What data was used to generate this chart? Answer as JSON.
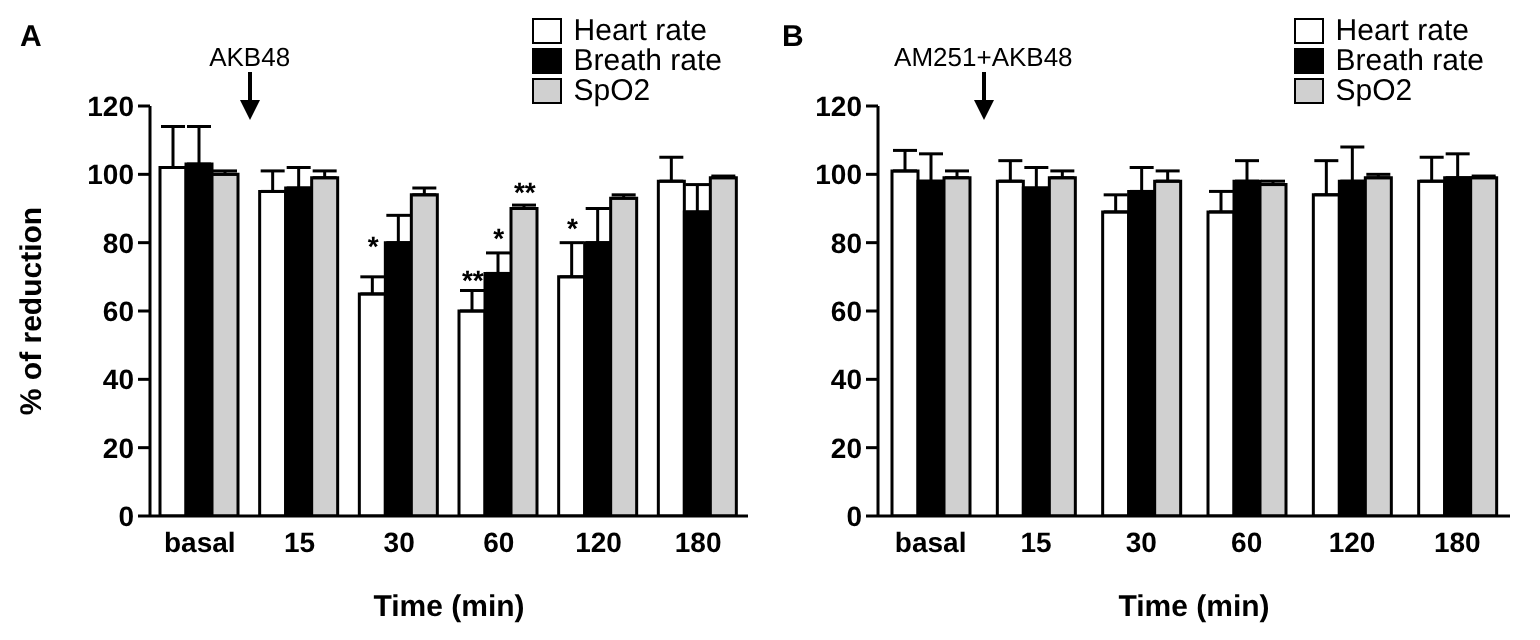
{
  "chart_data": [
    {
      "type": "bar",
      "title": "A",
      "xlabel": "Time (min)",
      "ylabel": "% of reduction",
      "categories": [
        "basal",
        "15",
        "30",
        "60",
        "120",
        "180"
      ],
      "ylim": [
        0,
        120
      ],
      "yticks": [
        0,
        20,
        40,
        60,
        80,
        100,
        120
      ],
      "legend": "top right",
      "series": [
        {
          "name": "Heart rate",
          "color": "#ffffff",
          "values": [
            102,
            95,
            65,
            60,
            70,
            98
          ],
          "errors": [
            [
              102,
              114
            ],
            [
              95,
              101
            ],
            [
              65,
              70
            ],
            [
              60,
              66
            ],
            [
              70,
              80
            ],
            [
              98,
              105
            ]
          ]
        },
        {
          "name": "Breath rate",
          "color": "#000000",
          "values": [
            103,
            96,
            80,
            71,
            80,
            89
          ],
          "errors": [
            [
              103,
              114
            ],
            [
              96,
              102
            ],
            [
              80,
              88
            ],
            [
              71,
              77
            ],
            [
              80,
              90
            ],
            [
              89,
              97
            ]
          ]
        },
        {
          "name": "SpO2",
          "color": "#d0d0d0",
          "values": [
            100,
            99,
            94,
            90,
            93,
            99
          ],
          "errors": [
            [
              100,
              101
            ],
            [
              99,
              101
            ],
            [
              94,
              96
            ],
            [
              90,
              91
            ],
            [
              93,
              94
            ],
            [
              99,
              99.5
            ]
          ]
        }
      ],
      "annotations": [
        "AKB48",
        "*",
        "**",
        "*",
        "**",
        "*"
      ]
    },
    {
      "type": "bar",
      "title": "B",
      "xlabel": "Time (min)",
      "categories": [
        "basal",
        "15",
        "30",
        "60",
        "120",
        "180"
      ],
      "ylim": [
        0,
        120
      ],
      "yticks": [
        0,
        20,
        40,
        60,
        80,
        100,
        120
      ],
      "legend": "top right",
      "series": [
        {
          "name": "Heart rate",
          "color": "#ffffff",
          "values": [
            101,
            98,
            89,
            89,
            94,
            98
          ],
          "errors": [
            [
              101,
              107
            ],
            [
              98,
              104
            ],
            [
              89,
              94
            ],
            [
              89,
              95
            ],
            [
              94,
              104
            ],
            [
              98,
              105
            ]
          ]
        },
        {
          "name": "Breath rate",
          "color": "#000000",
          "values": [
            98,
            96,
            95,
            98,
            98,
            99
          ],
          "errors": [
            [
              98,
              106
            ],
            [
              96,
              102
            ],
            [
              95,
              102
            ],
            [
              98,
              104
            ],
            [
              98,
              108
            ],
            [
              99,
              106
            ]
          ]
        },
        {
          "name": "SpO2",
          "color": "#d0d0d0",
          "values": [
            99,
            99,
            98,
            97,
            99,
            99
          ],
          "errors": [
            [
              99,
              101
            ],
            [
              99,
              101
            ],
            [
              98,
              101
            ],
            [
              97,
              98
            ],
            [
              99,
              100
            ],
            [
              99,
              99.5
            ]
          ]
        }
      ],
      "annotations": [
        "AM251+AKB48"
      ]
    }
  ]
}
